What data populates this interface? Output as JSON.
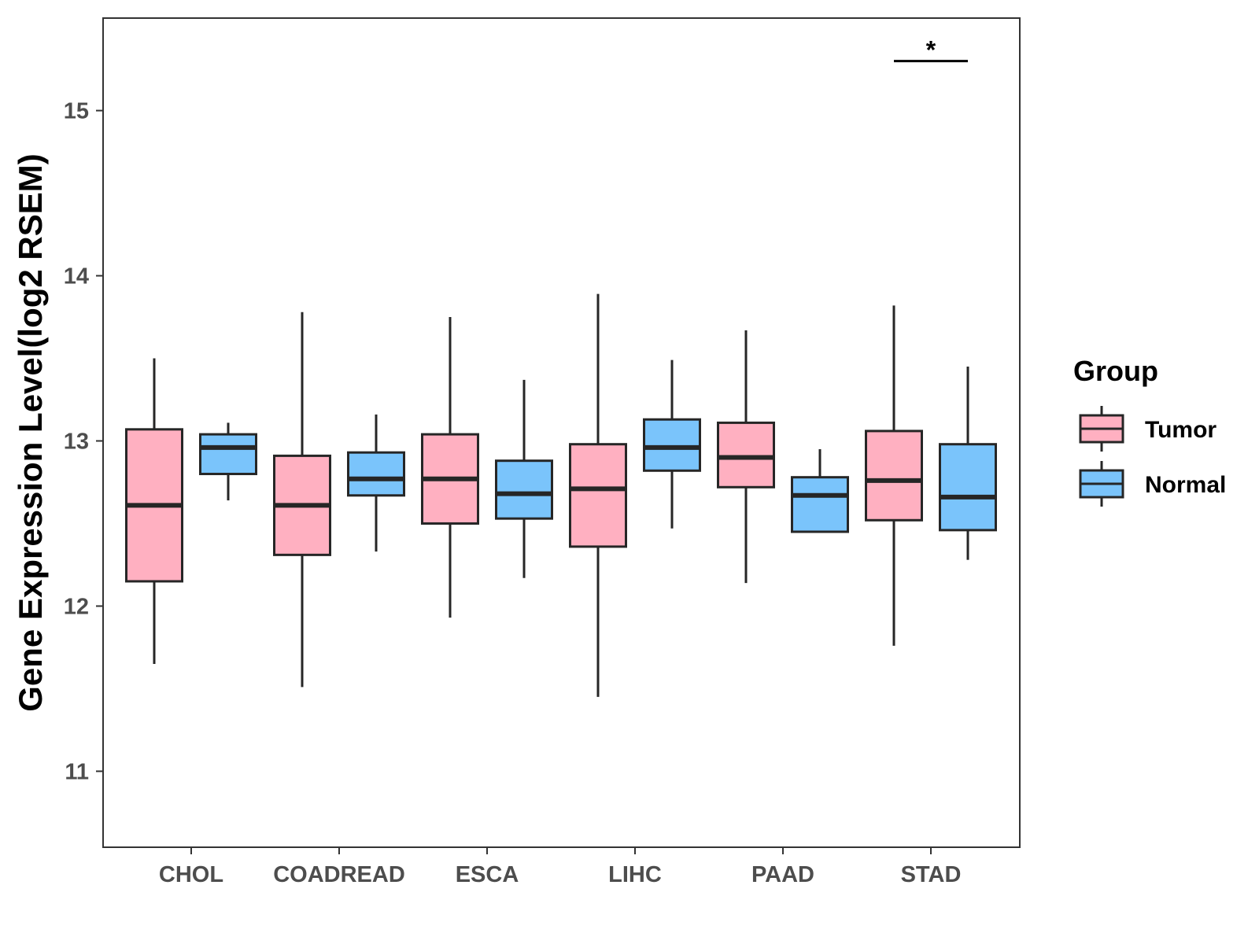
{
  "chart_data": {
    "type": "boxplot",
    "title": "",
    "xlabel": "",
    "ylabel": "Gene Expression Level(log2 RSEM)",
    "ylim": [
      10.54,
      15.56
    ],
    "yticks": [
      "11",
      "12",
      "13",
      "14",
      "15"
    ],
    "categories": [
      "CHOL",
      "COADREAD",
      "ESCA",
      "LIHC",
      "PAAD",
      "STAD"
    ],
    "grid": false,
    "legend": {
      "title": "Group",
      "position": "right",
      "entries": [
        "Tumor",
        "Normal"
      ]
    },
    "series": [
      {
        "name": "Tumor",
        "color": "#FFB0C1",
        "boxes": [
          {
            "category": "CHOL",
            "min": 11.65,
            "q1": 12.15,
            "median": 12.61,
            "q3": 13.07,
            "max": 13.5
          },
          {
            "category": "COADREAD",
            "min": 11.51,
            "q1": 12.31,
            "median": 12.61,
            "q3": 12.91,
            "max": 13.78
          },
          {
            "category": "ESCA",
            "min": 11.93,
            "q1": 12.5,
            "median": 12.77,
            "q3": 13.04,
            "max": 13.75
          },
          {
            "category": "LIHC",
            "min": 11.45,
            "q1": 12.36,
            "median": 12.71,
            "q3": 12.98,
            "max": 13.89
          },
          {
            "category": "PAAD",
            "min": 12.14,
            "q1": 12.72,
            "median": 12.9,
            "q3": 13.11,
            "max": 13.67
          },
          {
            "category": "STAD",
            "min": 11.76,
            "q1": 12.52,
            "median": 12.76,
            "q3": 13.06,
            "max": 13.82
          }
        ]
      },
      {
        "name": "Normal",
        "color": "#7AC4FB",
        "boxes": [
          {
            "category": "CHOL",
            "min": 12.64,
            "q1": 12.8,
            "median": 12.96,
            "q3": 13.04,
            "max": 13.11
          },
          {
            "category": "COADREAD",
            "min": 12.33,
            "q1": 12.67,
            "median": 12.77,
            "q3": 12.93,
            "max": 13.16
          },
          {
            "category": "ESCA",
            "min": 12.17,
            "q1": 12.53,
            "median": 12.68,
            "q3": 12.88,
            "max": 13.37
          },
          {
            "category": "LIHC",
            "min": 12.47,
            "q1": 12.82,
            "median": 12.96,
            "q3": 13.13,
            "max": 13.49
          },
          {
            "category": "PAAD",
            "min": 12.45,
            "q1": 12.45,
            "median": 12.67,
            "q3": 12.78,
            "max": 12.95
          },
          {
            "category": "STAD",
            "min": 12.28,
            "q1": 12.46,
            "median": 12.66,
            "q3": 12.98,
            "max": 13.45
          }
        ]
      }
    ],
    "annotations": [
      {
        "category": "STAD",
        "y": 15.3,
        "label": "*"
      }
    ]
  }
}
